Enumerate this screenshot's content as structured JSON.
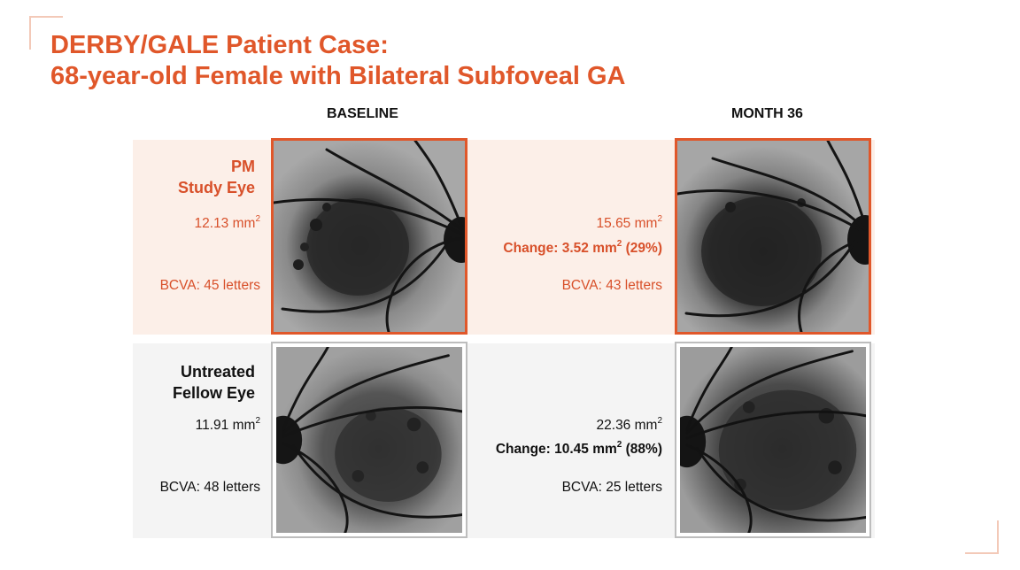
{
  "title": {
    "line1": "DERBY/GALE Patient Case:",
    "line2": "68-year-old Female with Bilateral Subfoveal GA"
  },
  "columns": {
    "baseline": "BASELINE",
    "month36": "MONTH 36"
  },
  "study_eye": {
    "label_line1": "PM",
    "label_line2": "Study Eye",
    "baseline_area": "12.13 mm",
    "baseline_bcva": "BCVA: 45 letters",
    "month36_area": "15.65 mm",
    "month36_change": "Change: 3.52 mm",
    "month36_change_pct": " (29%)",
    "month36_bcva": "BCVA: 43 letters",
    "unit_sup": "2"
  },
  "fellow_eye": {
    "label_line1": "Untreated",
    "label_line2": "Fellow Eye",
    "baseline_area": "11.91 mm",
    "baseline_bcva": "BCVA: 48 letters",
    "month36_area": "22.36 mm",
    "month36_change": "Change: 10.45 mm",
    "month36_change_pct": " (88%)",
    "month36_bcva": "BCVA: 25 letters",
    "unit_sup": "2"
  },
  "colors": {
    "accent": "#e0572a",
    "pm_band": "#fcefe8",
    "fellow_band": "#f4f4f4"
  }
}
